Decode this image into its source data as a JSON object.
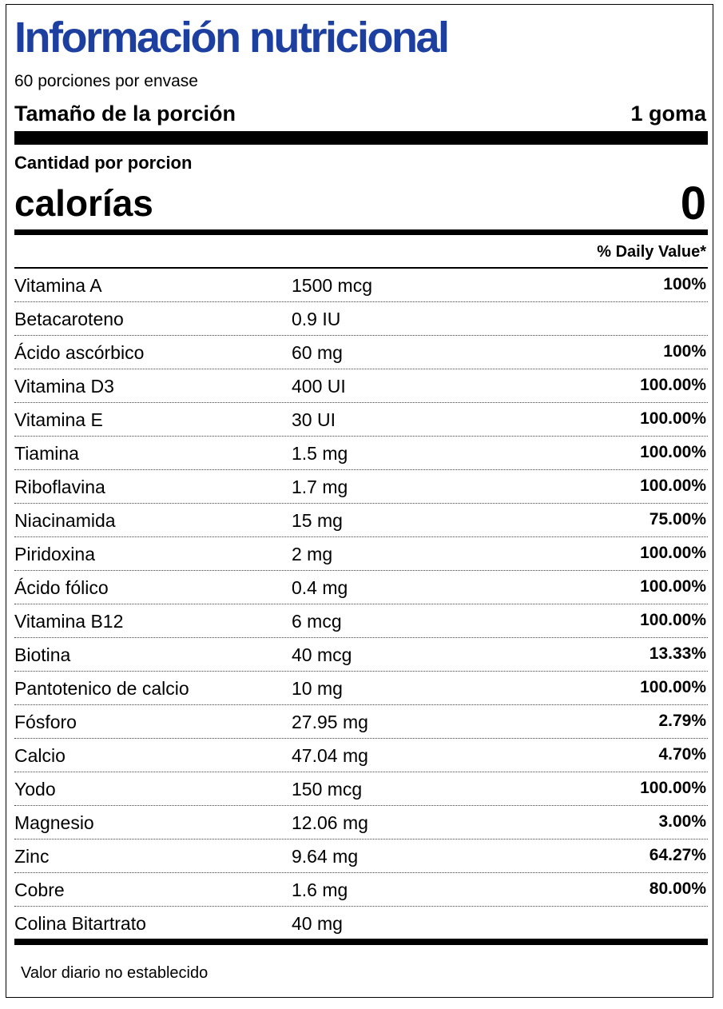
{
  "header": {
    "title": "Información nutricional",
    "servings": "60 porciones por envase",
    "serving_size_label": "Tamaño de la porción",
    "serving_size_value": "1 goma"
  },
  "calories": {
    "amount_label": "Cantidad por porcion",
    "label": "calorías",
    "value": "0"
  },
  "table": {
    "dv_header": "% Daily Value*",
    "rows": [
      {
        "name": "Vitamina A",
        "amount": "1500 mcg",
        "dv": "100%"
      },
      {
        "name": "Betacaroteno",
        "amount": "0.9 IU"
      },
      {
        "name": "Ácido ascórbico",
        "amount": "60 mg",
        "dv": "100%"
      },
      {
        "name": "Vitamina D3",
        "amount": "400 UI",
        "dv": "100.00%"
      },
      {
        "name": "Vitamina E",
        "amount": "30 UI",
        "dv": "100.00%"
      },
      {
        "name": "Tiamina",
        "amount": "1.5 mg",
        "dv": "100.00%"
      },
      {
        "name": "Riboflavina",
        "amount": "1.7 mg",
        "dv": "100.00%"
      },
      {
        "name": "Niacinamida",
        "amount": "15 mg",
        "dv": "75.00%"
      },
      {
        "name": "Piridoxina",
        "amount": "2 mg",
        "dv": "100.00%"
      },
      {
        "name": "Ácido fólico",
        "amount": "0.4 mg",
        "dv": "100.00%"
      },
      {
        "name": "Vitamina B12",
        "amount": "6 mcg",
        "dv": "100.00%"
      },
      {
        "name": "Biotina",
        "amount": "40 mcg",
        "dv": "13.33%"
      },
      {
        "name": "Pantotenico de calcio",
        "amount": "10 mg",
        "dv": "100.00%"
      },
      {
        "name": "Fósforo",
        "amount": "27.95 mg",
        "dv": "2.79%"
      },
      {
        "name": "Calcio",
        "amount": "47.04 mg",
        "dv": "4.70%"
      },
      {
        "name": "Yodo",
        "amount": "150 mcg",
        "dv": "100.00%"
      },
      {
        "name": "Magnesio",
        "amount": "12.06 mg",
        "dv": "3.00%"
      },
      {
        "name": "Zinc",
        "amount": "9.64 mg",
        "dv": "64.27%"
      },
      {
        "name": "Cobre",
        "amount": "1.6 mg",
        "dv": "80.00%"
      },
      {
        "name": "Colina Bitartrato",
        "amount": "40 mg"
      }
    ]
  },
  "footnote": "Valor diario no establecido"
}
